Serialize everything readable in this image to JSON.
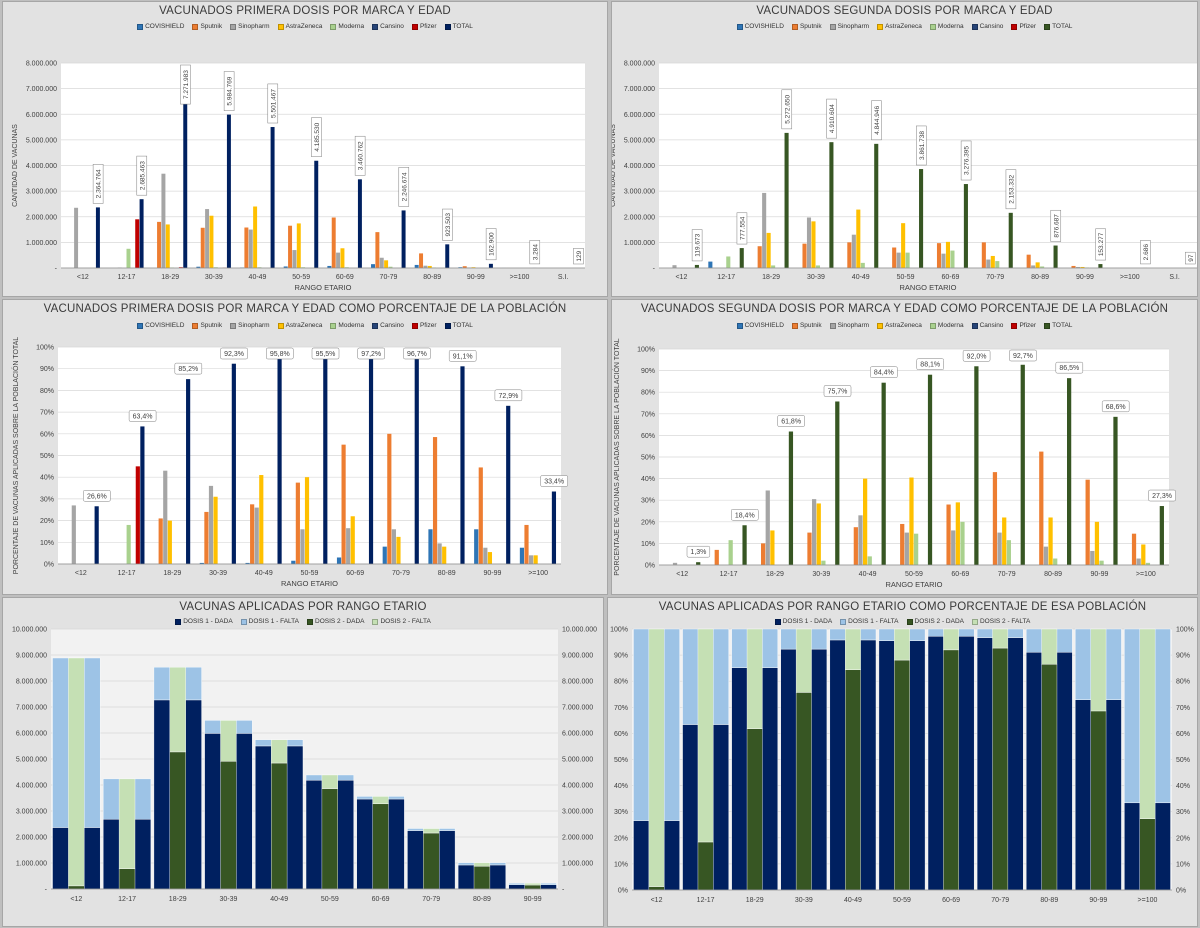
{
  "panels": [
    {
      "title": "VACUNADOS PRIMERA DOSIS POR MARCA Y EDAD",
      "legend": [
        "COVISHIELD",
        "Sputnik",
        "Sinopharm",
        "AstraZeneca",
        "Moderna",
        "Cansino",
        "Pfizer",
        "TOTAL"
      ],
      "xlabel": "RANGO ETARIO",
      "ylabel": "CANTIDAD DE VACUNAS"
    },
    {
      "title": "VACUNADOS SEGUNDA DOSIS POR MARCA Y EDAD",
      "legend": [
        "COVISHIELD",
        "Sputnik",
        "Sinopharm",
        "AstraZeneca",
        "Moderna",
        "Cansino",
        "Pfizer",
        "TOTAL"
      ],
      "xlabel": "RANGO ETARIO",
      "ylabel": "CANTIDAD DE VACUNAS"
    },
    {
      "title": "VACUNADOS PRIMERA DOSIS POR MARCA Y EDAD COMO PORCENTAJE DE LA POBLACIÓN",
      "legend": [
        "COVISHIELD",
        "Sputnik",
        "Sinopharm",
        "AstraZeneca",
        "Moderna",
        "Cansino",
        "Pfizer",
        "TOTAL"
      ],
      "xlabel": "RANGO ETARIO",
      "ylabel": "PORCENTAJE DE VACUNAS APLICADAS SOBRE LA POBLACIÓN TOTAL"
    },
    {
      "title": "VACUNADOS SEGUNDA DOSIS POR MARCA Y EDAD COMO PORCENTAJE DE LA POBLACIÓN",
      "legend": [
        "COVISHIELD",
        "Sputnik",
        "Sinopharm",
        "AstraZeneca",
        "Moderna",
        "Cansino",
        "Pfizer",
        "TOTAL"
      ],
      "xlabel": "RANGO ETARIO",
      "ylabel": "PORCENTAJE DE VACUNAS APLICADAS SOBRE LA POBLACIÓN TOTAL"
    },
    {
      "title": "VACUNAS APLICADAS POR RANGO ETARIO",
      "legend": [
        "DOSIS 1 - DADA",
        "DOSIS 1 - FALTA",
        "DOSIS 2 - DADA",
        "DOSIS 2 - FALTA"
      ]
    },
    {
      "title": "VACUNAS APLICADAS POR RANGO ETARIO COMO PORCENTAJE DE ESA POBLACIÓN",
      "legend": [
        "DOSIS 1 - DADA",
        "DOSIS 1 - FALTA",
        "DOSIS 2 - DADA",
        "DOSIS 2 - FALTA"
      ]
    }
  ],
  "colors": {
    "brand": [
      "#2e75b6",
      "#ed7d31",
      "#a5a5a5",
      "#ffc000",
      "#a9d18e",
      "#264478",
      "#c00000"
    ],
    "total1": "#002060",
    "total2": "#375623",
    "d1dada": "#002060",
    "d1falta": "#9dc3e6",
    "d2dada": "#375623",
    "d2falta": "#c5e0b4"
  },
  "chart_data": [
    {
      "type": "bar",
      "title": "VACUNADOS PRIMERA DOSIS POR MARCA Y EDAD",
      "xlabel": "RANGO ETARIO",
      "ylabel": "CANTIDAD DE VACUNAS",
      "ylim": [
        0,
        8000000
      ],
      "yticks": [
        "-",
        "1.000.000",
        "2.000.000",
        "3.000.000",
        "4.000.000",
        "5.000.000",
        "6.000.000",
        "7.000.000",
        "8.000.000"
      ],
      "categories": [
        "<12",
        "12-17",
        "18-29",
        "30-39",
        "40-49",
        "50-59",
        "60-69",
        "70-79",
        "80-89",
        "90-99",
        ">=100",
        "S.I."
      ],
      "series": [
        {
          "name": "COVISHIELD",
          "values": [
            0,
            0,
            0,
            50000,
            20000,
            60000,
            80000,
            150000,
            120000,
            30000,
            2000,
            0
          ]
        },
        {
          "name": "Sputnik",
          "values": [
            0,
            0,
            1800000,
            1570000,
            1580000,
            1650000,
            1970000,
            1400000,
            570000,
            70000,
            2000,
            5
          ]
        },
        {
          "name": "Sinopharm",
          "values": [
            2350000,
            20000,
            3680000,
            2300000,
            1500000,
            700000,
            600000,
            400000,
            90000,
            20000,
            0,
            20
          ]
        },
        {
          "name": "AstraZeneca",
          "values": [
            0,
            0,
            1700000,
            2040000,
            2400000,
            1740000,
            770000,
            300000,
            80000,
            30000,
            0,
            10
          ]
        },
        {
          "name": "Moderna",
          "values": [
            0,
            750000,
            20000,
            30000,
            30000,
            30000,
            30000,
            50000,
            20000,
            0,
            0,
            0
          ]
        },
        {
          "name": "Cansino",
          "values": [
            0,
            0,
            0,
            0,
            0,
            0,
            0,
            0,
            0,
            0,
            0,
            0
          ]
        },
        {
          "name": "Pfizer",
          "values": [
            0,
            1900000,
            30000,
            10000,
            0,
            0,
            0,
            0,
            0,
            0,
            0,
            0
          ]
        },
        {
          "name": "TOTAL",
          "values": [
            2364764,
            2685463,
            7271983,
            5984769,
            5501467,
            4185530,
            3460762,
            2246674,
            923503,
            162900,
            3284,
            129
          ]
        }
      ],
      "total_labels": [
        "2.364.764",
        "2.685.463",
        "7.271.983",
        "5.984.769",
        "5.501.467",
        "4.185.530",
        "3.460.762",
        "2.246.674",
        "923.503",
        "162.900",
        "3.284",
        "129"
      ]
    },
    {
      "type": "bar",
      "title": "VACUNADOS SEGUNDA DOSIS POR MARCA Y EDAD",
      "xlabel": "RANGO ETARIO",
      "ylabel": "CANTIDAD DE VACUNAS",
      "ylim": [
        0,
        8000000
      ],
      "yticks": [
        "-",
        "1.000.000",
        "2.000.000",
        "3.000.000",
        "4.000.000",
        "5.000.000",
        "6.000.000",
        "7.000.000",
        "8.000.000"
      ],
      "categories": [
        "<12",
        "12-17",
        "18-29",
        "30-39",
        "40-49",
        "50-59",
        "60-69",
        "70-79",
        "80-89",
        "90-99",
        ">=100",
        "S.I."
      ],
      "series": [
        {
          "name": "COVISHIELD",
          "values": [
            0,
            250000,
            0,
            0,
            0,
            0,
            0,
            0,
            0,
            0,
            0,
            0
          ]
        },
        {
          "name": "Sputnik",
          "values": [
            0,
            0,
            850000,
            950000,
            1000000,
            800000,
            970000,
            1000000,
            520000,
            80000,
            0,
            0
          ]
        },
        {
          "name": "Sinopharm",
          "values": [
            110000,
            0,
            2930000,
            1970000,
            1300000,
            600000,
            560000,
            330000,
            100000,
            40000,
            0,
            0
          ]
        },
        {
          "name": "AstraZeneca",
          "values": [
            0,
            0,
            1370000,
            1820000,
            2280000,
            1750000,
            1020000,
            470000,
            220000,
            40000,
            0,
            0
          ]
        },
        {
          "name": "Moderna",
          "values": [
            0,
            450000,
            100000,
            100000,
            200000,
            600000,
            680000,
            270000,
            60000,
            20000,
            0,
            0
          ]
        },
        {
          "name": "Cansino",
          "values": [
            0,
            0,
            0,
            0,
            0,
            0,
            0,
            0,
            0,
            0,
            0,
            0
          ]
        },
        {
          "name": "Pfizer",
          "values": [
            0,
            0,
            0,
            0,
            0,
            0,
            0,
            0,
            0,
            0,
            0,
            0
          ]
        },
        {
          "name": "TOTAL",
          "values": [
            119673,
            777554,
            5272650,
            4910604,
            4844946,
            3861738,
            3276395,
            2153332,
            876687,
            153277,
            2686,
            97
          ]
        }
      ],
      "total_labels": [
        "119.673",
        "777.554",
        "5.272.650",
        "4.910.604",
        "4.844.946",
        "3.861.738",
        "3.276.395",
        "2.153.332",
        "876.687",
        "153.277",
        "2.686",
        "97"
      ]
    },
    {
      "type": "bar",
      "title": "VACUNADOS PRIMERA DOSIS POR MARCA Y EDAD COMO PORCENTAJE DE LA POBLACIÓN",
      "xlabel": "RANGO ETARIO",
      "ylabel": "PORCENTAJE DE VACUNAS APLICADAS SOBRE LA POBLACIÓN TOTAL",
      "ylim": [
        0,
        100
      ],
      "yticks": [
        "0%",
        "10%",
        "20%",
        "30%",
        "40%",
        "50%",
        "60%",
        "70%",
        "80%",
        "90%",
        "100%"
      ],
      "categories": [
        "<12",
        "12-17",
        "18-29",
        "30-39",
        "40-49",
        "50-59",
        "60-69",
        "70-79",
        "80-89",
        "90-99",
        ">=100"
      ],
      "series": [
        {
          "name": "COVISHIELD",
          "values": [
            0,
            0,
            0,
            0.5,
            0.5,
            1.5,
            3,
            8,
            16,
            16,
            7.5
          ]
        },
        {
          "name": "Sputnik",
          "values": [
            0,
            0,
            21,
            24,
            27.5,
            37.5,
            55,
            60,
            58.5,
            44.5,
            18
          ]
        },
        {
          "name": "Sinopharm",
          "values": [
            27,
            0,
            43,
            36,
            26,
            16,
            16.5,
            16,
            9.5,
            7.5,
            4
          ]
        },
        {
          "name": "AstraZeneca",
          "values": [
            0,
            0,
            20,
            31,
            41,
            40,
            22,
            12.5,
            8,
            5.5,
            4
          ]
        },
        {
          "name": "Moderna",
          "values": [
            0,
            18,
            0,
            0,
            0,
            0,
            0,
            0,
            0,
            0,
            0
          ]
        },
        {
          "name": "Cansino",
          "values": [
            0,
            0,
            0,
            0,
            0,
            0,
            0,
            0,
            0,
            0,
            0
          ]
        },
        {
          "name": "Pfizer",
          "values": [
            0,
            45,
            0,
            0,
            0,
            0,
            0,
            0,
            0,
            0,
            0
          ]
        },
        {
          "name": "TOTAL",
          "values": [
            26.6,
            63.4,
            85.2,
            92.3,
            95.8,
            95.5,
            97.2,
            96.7,
            91.1,
            72.9,
            33.4
          ]
        }
      ],
      "total_labels": [
        "26,6%",
        "63,4%",
        "85,2%",
        "92,3%",
        "95,8%",
        "95,5%",
        "97,2%",
        "96,7%",
        "91,1%",
        "72,9%",
        "33,4%"
      ]
    },
    {
      "type": "bar",
      "title": "VACUNADOS SEGUNDA DOSIS POR MARCA Y EDAD COMO PORCENTAJE DE LA POBLACIÓN",
      "xlabel": "RANGO ETARIO",
      "ylabel": "PORCENTAJE DE VACUNAS APLICADAS SOBRE LA POBLACIÓN TOTAL",
      "ylim": [
        0,
        100
      ],
      "yticks": [
        "0%",
        "10%",
        "20%",
        "30%",
        "40%",
        "50%",
        "60%",
        "70%",
        "80%",
        "90%",
        "100%"
      ],
      "categories": [
        "<12",
        "12-17",
        "18-29",
        "30-39",
        "40-49",
        "50-59",
        "60-69",
        "70-79",
        "80-89",
        "90-99",
        ">=100"
      ],
      "series": [
        {
          "name": "COVISHIELD",
          "values": [
            0,
            0,
            0,
            0,
            0,
            0,
            0,
            0,
            0,
            0,
            0
          ]
        },
        {
          "name": "Sputnik",
          "values": [
            0,
            7,
            10,
            15,
            17.5,
            19,
            28,
            43,
            52.5,
            39.5,
            14.5
          ]
        },
        {
          "name": "Sinopharm",
          "values": [
            1,
            0,
            34.5,
            30.5,
            23,
            15,
            16,
            15,
            8.5,
            6.5,
            3
          ]
        },
        {
          "name": "AstraZeneca",
          "values": [
            0,
            0,
            16,
            28.5,
            40,
            40.5,
            29,
            22,
            22,
            20,
            9.5
          ]
        },
        {
          "name": "Moderna",
          "values": [
            0,
            11.5,
            0,
            2,
            4,
            14.5,
            20,
            11.5,
            3,
            2,
            1
          ]
        },
        {
          "name": "Cansino",
          "values": [
            0,
            0,
            0,
            0,
            0,
            0,
            0,
            0,
            0,
            0,
            0
          ]
        },
        {
          "name": "Pfizer",
          "values": [
            0,
            0,
            0,
            0,
            0,
            0,
            0,
            0,
            0,
            0,
            0
          ]
        },
        {
          "name": "TOTAL",
          "values": [
            1.3,
            18.4,
            61.8,
            75.7,
            84.4,
            88.1,
            92.0,
            92.7,
            86.5,
            68.6,
            27.3
          ]
        }
      ],
      "total_labels": [
        "1,3%",
        "18,4%",
        "61,8%",
        "75,7%",
        "84,4%",
        "88,1%",
        "92,0%",
        "92,7%",
        "86,5%",
        "68,6%",
        "27,3%"
      ]
    },
    {
      "type": "bar",
      "title": "VACUNAS APLICADAS POR RANGO ETARIO",
      "ylim": [
        0,
        10000000
      ],
      "yticks": [
        "-",
        "1.000.000",
        "2.000.000",
        "3.000.000",
        "4.000.000",
        "5.000.000",
        "6.000.000",
        "7.000.000",
        "8.000.000",
        "9.000.000",
        "10.000.000"
      ],
      "categories": [
        "<12",
        "12-17",
        "18-29",
        "30-39",
        "40-49",
        "50-59",
        "60-69",
        "70-79",
        "80-89",
        "90-99"
      ],
      "series": [
        {
          "name": "DOSIS 1 - DADA",
          "values": [
            2364764,
            2685463,
            7271983,
            5984769,
            5501467,
            4185530,
            3460762,
            2246674,
            923503,
            162900
          ]
        },
        {
          "name": "DOSIS 1 - FALTA",
          "values": [
            6520000,
            1550000,
            1260000,
            500000,
            240000,
            200000,
            100000,
            80000,
            90000,
            60000
          ]
        },
        {
          "name": "DOSIS 2 - DADA",
          "values": [
            119673,
            777554,
            5272650,
            4910604,
            4844946,
            3861738,
            3276395,
            2153332,
            876687,
            153277
          ]
        },
        {
          "name": "DOSIS 2 - FALTA",
          "values": [
            8765000,
            3458000,
            3259000,
            1574000,
            896000,
            524000,
            285000,
            173000,
            137000,
            70000
          ]
        }
      ]
    },
    {
      "type": "bar",
      "title": "VACUNAS APLICADAS POR RANGO ETARIO COMO PORCENTAJE DE ESA POBLACIÓN",
      "ylim": [
        0,
        100
      ],
      "yticks": [
        "0%",
        "10%",
        "20%",
        "30%",
        "40%",
        "50%",
        "60%",
        "70%",
        "80%",
        "90%",
        "100%"
      ],
      "categories": [
        "<12",
        "12-17",
        "18-29",
        "30-39",
        "40-49",
        "50-59",
        "60-69",
        "70-79",
        "80-89",
        "90-99",
        ">=100"
      ],
      "series": [
        {
          "name": "DOSIS 1 - DADA",
          "values": [
            26.6,
            63.4,
            85.2,
            92.3,
            95.8,
            95.5,
            97.2,
            96.7,
            91.1,
            72.9,
            33.4
          ]
        },
        {
          "name": "DOSIS 1 - FALTA",
          "values": [
            73.4,
            36.6,
            14.8,
            7.7,
            4.2,
            4.5,
            2.8,
            3.3,
            8.9,
            27.1,
            66.6
          ]
        },
        {
          "name": "DOSIS 2 - DADA",
          "values": [
            1.3,
            18.4,
            61.8,
            75.7,
            84.4,
            88.1,
            92.0,
            92.7,
            86.5,
            68.6,
            27.3
          ]
        },
        {
          "name": "DOSIS 2 - FALTA",
          "values": [
            98.7,
            81.6,
            38.2,
            24.3,
            15.6,
            11.9,
            8.0,
            7.3,
            13.5,
            31.4,
            72.7
          ]
        }
      ]
    }
  ]
}
